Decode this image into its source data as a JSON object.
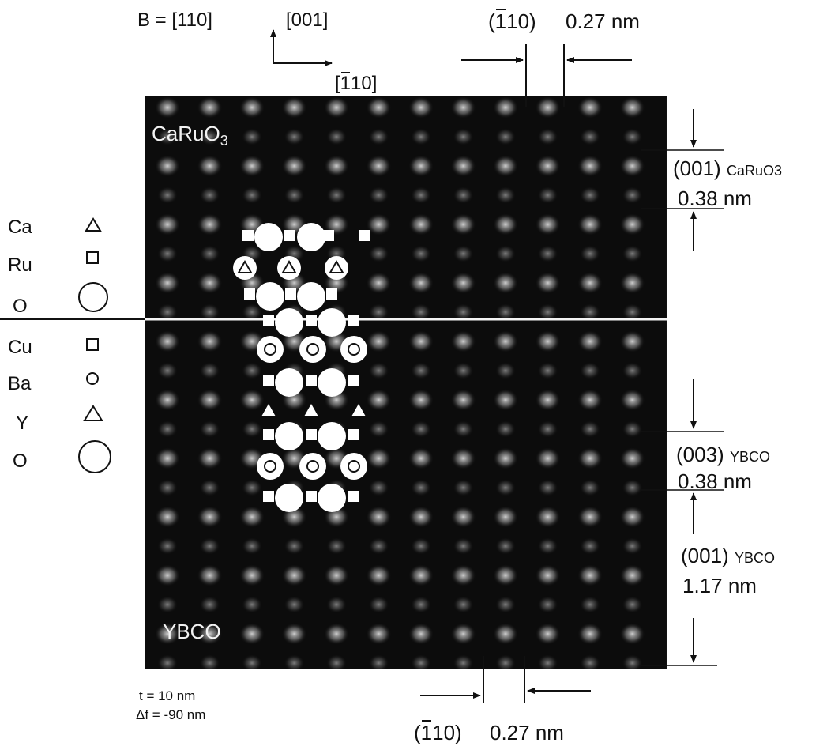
{
  "header": {
    "beam_dir": "B = [110]",
    "axis_vertical": "[001]",
    "axis_horizontal_bar": "1",
    "axis_horizontal_rest": "10]",
    "axis_horizontal_open": "["
  },
  "top_spacing": {
    "plane_open": "(",
    "plane_bar": "1",
    "plane_rest": "10)",
    "value": "0.27 nm"
  },
  "bottom_spacing": {
    "plane_open": "(",
    "plane_bar": "1",
    "plane_rest": "10)",
    "value": "0.27 nm"
  },
  "layers": {
    "top_label_main": "CaRuO",
    "top_label_sub": "3",
    "bottom_label": "YBCO"
  },
  "right_labels": {
    "caruo_plane": "(001)",
    "caruo_sub": "CaRuO3",
    "caruo_value": "0.38 nm",
    "ybco3_plane": "(003)",
    "ybco3_sub": "YBCO",
    "ybco3_value": "0.38 nm",
    "ybco1_plane": "(001)",
    "ybco1_sub": "YBCO",
    "ybco1_value": "1.17 nm"
  },
  "legend_caruo": [
    {
      "element": "Ca",
      "icon": "triangle-outline-small"
    },
    {
      "element": "Ru",
      "icon": "square-outline-small"
    },
    {
      "element": "O",
      "icon": "circle-outline-large"
    }
  ],
  "legend_ybco": [
    {
      "element": "Cu",
      "icon": "square-outline-small"
    },
    {
      "element": "Ba",
      "icon": "circle-outline-tiny"
    },
    {
      "element": "Y",
      "icon": "triangle-outline"
    },
    {
      "element": "O",
      "icon": "circle-outline-large"
    }
  ],
  "imaging": {
    "thickness": "t = 10 nm",
    "defocus": "Δf = -90 nm"
  },
  "colors": {
    "background": "#0c0c0c",
    "spot": "#bdbdbd",
    "model": "#ffffff",
    "line": "#111111"
  }
}
